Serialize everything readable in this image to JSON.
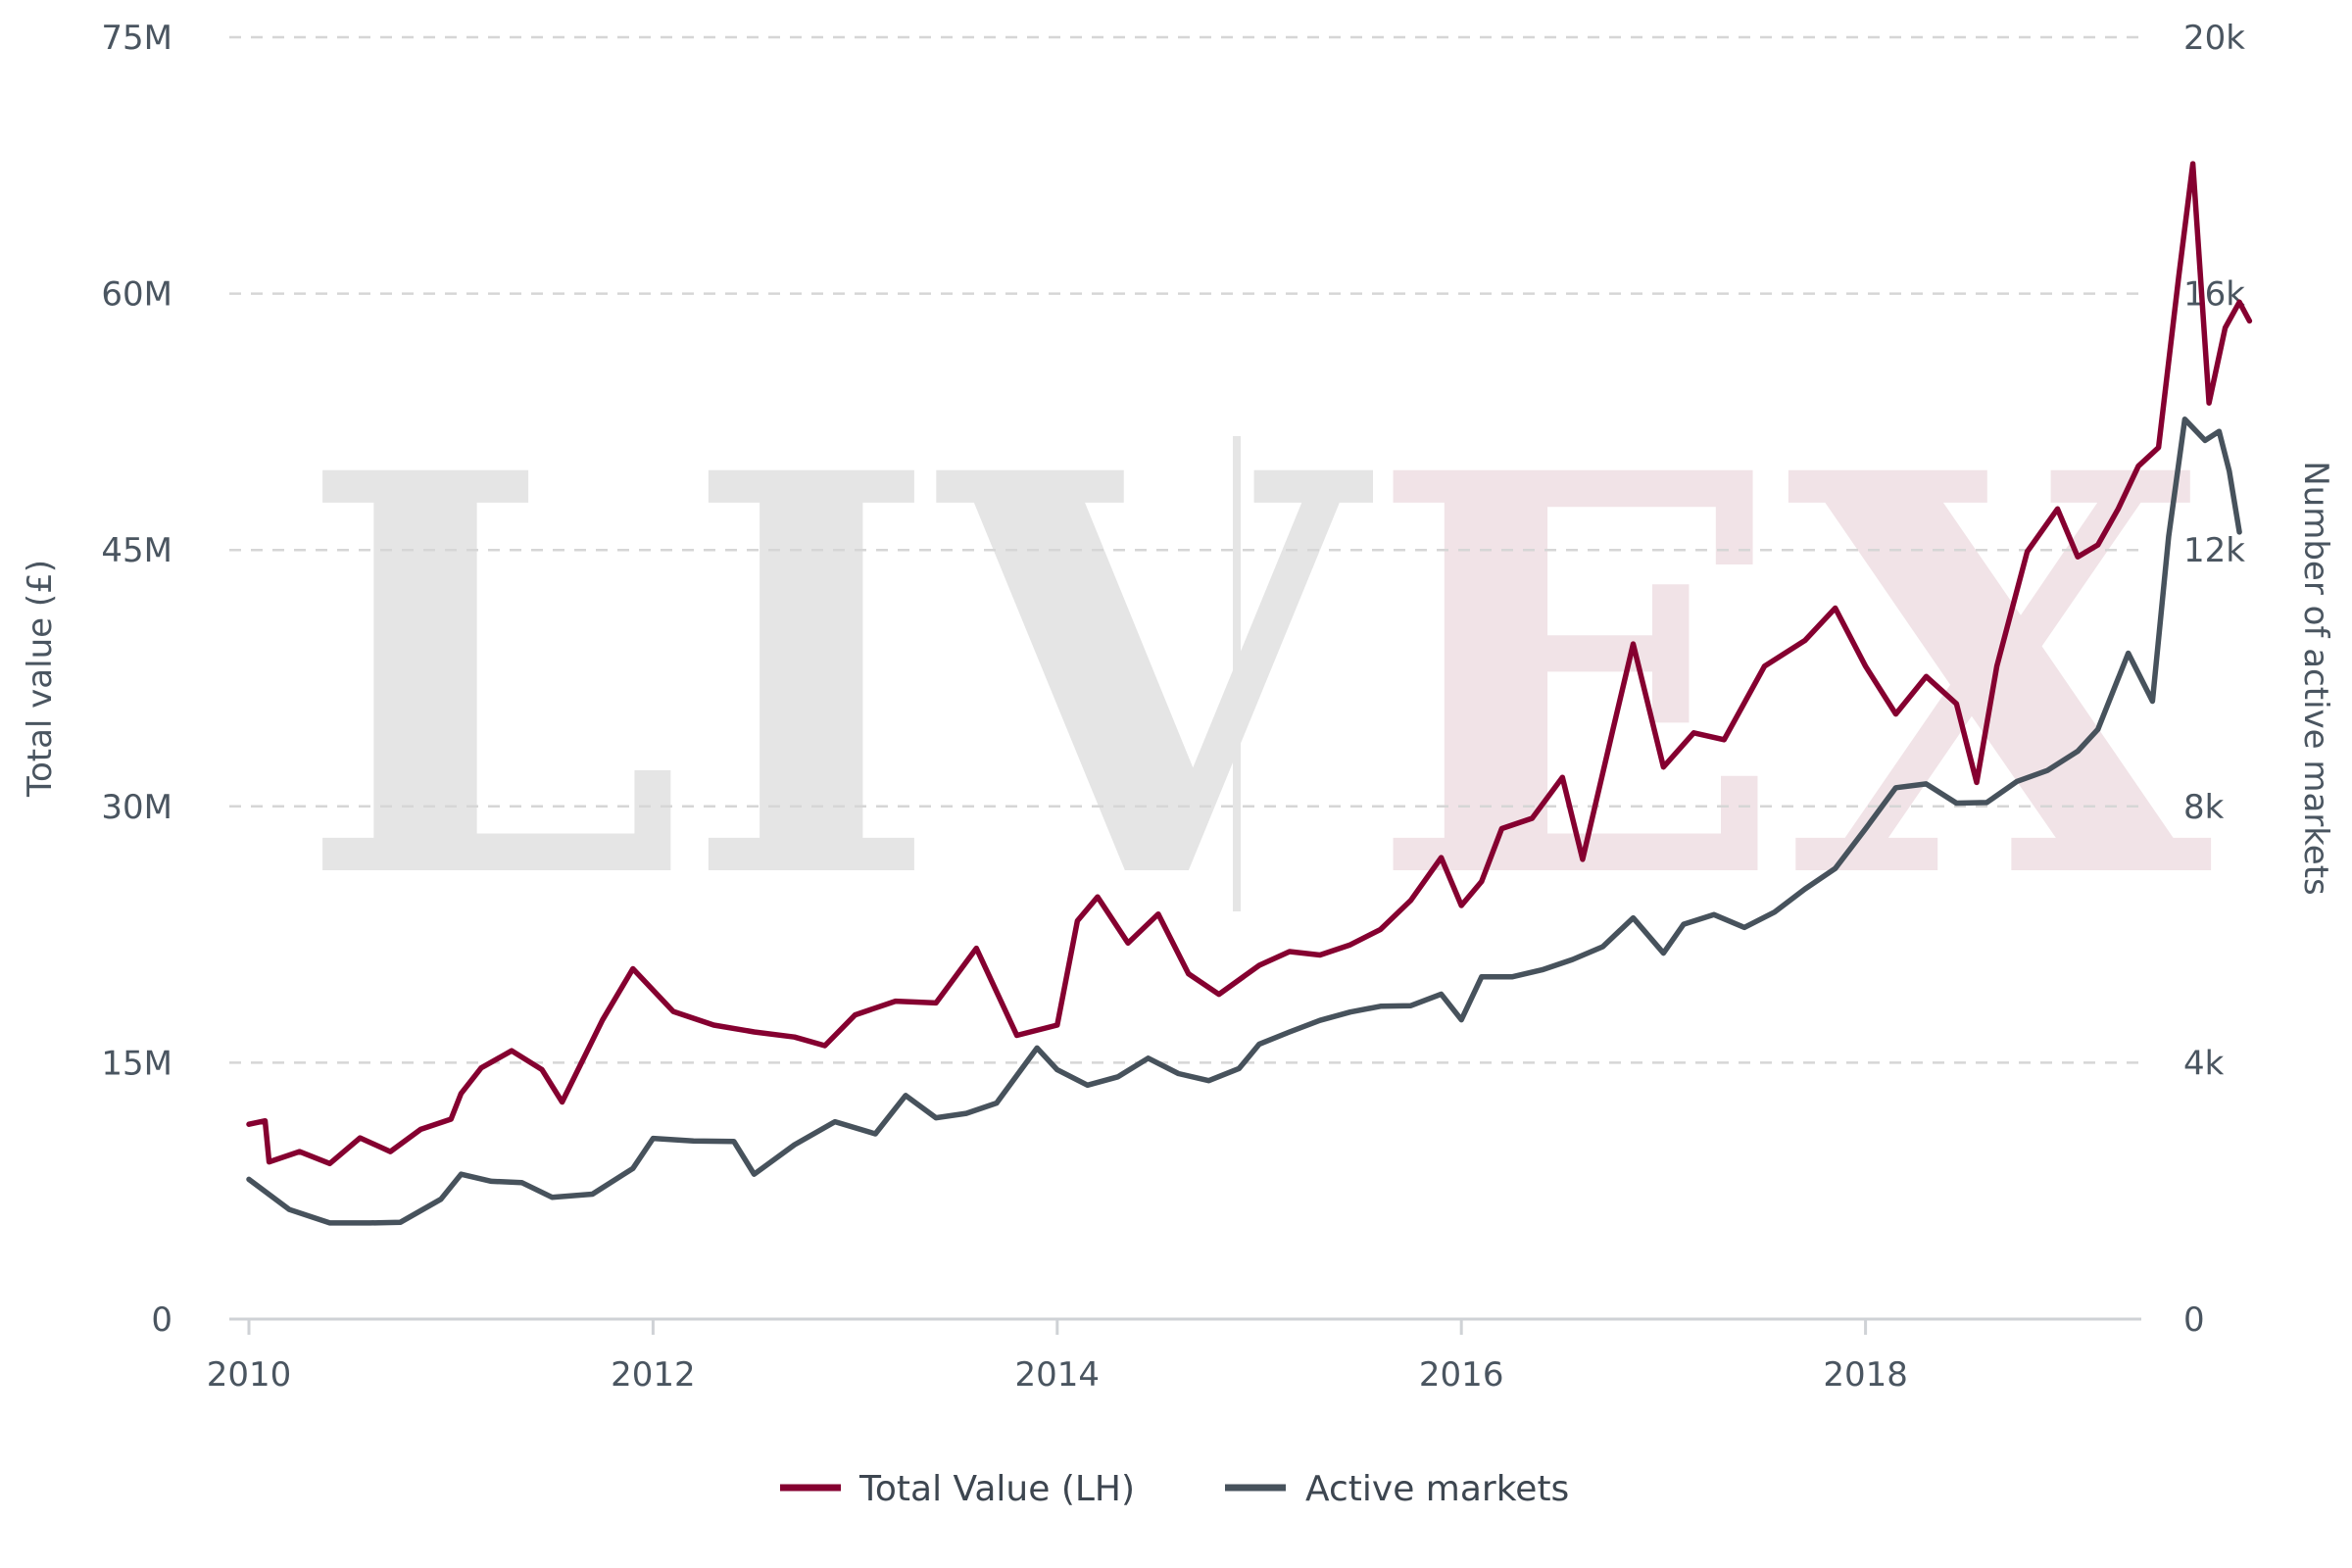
{
  "watermark": {
    "left_text": "LIV",
    "right_text": "EX",
    "left_color": "#e5e5e5",
    "right_color": "#f1e3e7"
  },
  "chart_data": {
    "type": "line",
    "x_axis": {
      "range": [
        2010,
        2020
      ],
      "ticks": [
        2010,
        2012,
        2014,
        2016,
        2018
      ],
      "tick_labels": [
        "2010",
        "2012",
        "2014",
        "2016",
        "2018"
      ]
    },
    "y_left": {
      "label": "Total value (£)",
      "range": [
        0,
        75000000
      ],
      "ticks": [
        0,
        15000000,
        30000000,
        45000000,
        60000000,
        75000000
      ],
      "tick_labels": [
        "0",
        "15M",
        "30M",
        "45M",
        "60M",
        "75M"
      ]
    },
    "y_right": {
      "label": "Number of active markets",
      "range": [
        0,
        20000
      ],
      "ticks": [
        0,
        4000,
        8000,
        12000,
        16000,
        20000
      ],
      "tick_labels": [
        "0",
        "4k",
        "8k",
        "12k",
        "16k",
        "20k"
      ]
    },
    "grid": "horizontal dashed",
    "legend_position": "bottom-center",
    "series": [
      {
        "name": "Total Value (LH)",
        "axis": "left",
        "color": "#850030",
        "points": [
          [
            2010.0,
            11400000
          ],
          [
            2010.08,
            11600000
          ],
          [
            2010.1,
            9200000
          ],
          [
            2010.25,
            9800000
          ],
          [
            2010.4,
            9100000
          ],
          [
            2010.55,
            10600000
          ],
          [
            2010.7,
            9800000
          ],
          [
            2010.85,
            11100000
          ],
          [
            2011.0,
            11700000
          ],
          [
            2011.05,
            13200000
          ],
          [
            2011.15,
            14700000
          ],
          [
            2011.3,
            15700000
          ],
          [
            2011.45,
            14600000
          ],
          [
            2011.55,
            12700000
          ],
          [
            2011.75,
            17500000
          ],
          [
            2011.9,
            20500000
          ],
          [
            2012.1,
            18000000
          ],
          [
            2012.3,
            17200000
          ],
          [
            2012.5,
            16800000
          ],
          [
            2012.7,
            16500000
          ],
          [
            2012.85,
            16000000
          ],
          [
            2013.0,
            17800000
          ],
          [
            2013.2,
            18600000
          ],
          [
            2013.4,
            18500000
          ],
          [
            2013.6,
            21700000
          ],
          [
            2013.8,
            16600000
          ],
          [
            2014.0,
            17200000
          ],
          [
            2014.1,
            23300000
          ],
          [
            2014.2,
            24700000
          ],
          [
            2014.35,
            22000000
          ],
          [
            2014.5,
            23700000
          ],
          [
            2014.65,
            20200000
          ],
          [
            2014.8,
            19000000
          ],
          [
            2015.0,
            20700000
          ],
          [
            2015.15,
            21500000
          ],
          [
            2015.3,
            21300000
          ],
          [
            2015.45,
            21900000
          ],
          [
            2015.6,
            22800000
          ],
          [
            2015.75,
            24500000
          ],
          [
            2015.9,
            27000000
          ],
          [
            2016.0,
            24200000
          ],
          [
            2016.1,
            25600000
          ],
          [
            2016.2,
            28700000
          ],
          [
            2016.35,
            29300000
          ],
          [
            2016.5,
            31700000
          ],
          [
            2016.6,
            26900000
          ],
          [
            2016.75,
            34500000
          ],
          [
            2016.85,
            39500000
          ],
          [
            2017.0,
            32300000
          ],
          [
            2017.15,
            34300000
          ],
          [
            2017.3,
            33900000
          ],
          [
            2017.5,
            38200000
          ],
          [
            2017.7,
            39700000
          ],
          [
            2017.85,
            41600000
          ],
          [
            2018.0,
            38200000
          ],
          [
            2018.15,
            35400000
          ],
          [
            2018.3,
            37600000
          ],
          [
            2018.45,
            36000000
          ],
          [
            2018.55,
            31400000
          ],
          [
            2018.65,
            38200000
          ],
          [
            2018.8,
            44900000
          ],
          [
            2018.95,
            47400000
          ],
          [
            2019.05,
            44600000
          ],
          [
            2019.15,
            45300000
          ],
          [
            2019.25,
            47400000
          ],
          [
            2019.35,
            49900000
          ],
          [
            2019.45,
            51000000
          ],
          [
            2019.55,
            61000000
          ],
          [
            2019.62,
            67600000
          ],
          [
            2019.7,
            53600000
          ],
          [
            2019.78,
            58000000
          ],
          [
            2019.85,
            59500000
          ],
          [
            2019.9,
            58400000
          ]
        ]
      },
      {
        "name": "Active markets",
        "axis": "right",
        "color": "#47525c",
        "points": [
          [
            2010.0,
            2180
          ],
          [
            2010.2,
            1710
          ],
          [
            2010.4,
            1500
          ],
          [
            2010.6,
            1500
          ],
          [
            2010.75,
            1510
          ],
          [
            2010.95,
            1870
          ],
          [
            2011.05,
            2260
          ],
          [
            2011.2,
            2150
          ],
          [
            2011.35,
            2130
          ],
          [
            2011.5,
            1900
          ],
          [
            2011.7,
            1950
          ],
          [
            2011.9,
            2350
          ],
          [
            2012.0,
            2820
          ],
          [
            2012.2,
            2780
          ],
          [
            2012.4,
            2770
          ],
          [
            2012.5,
            2260
          ],
          [
            2012.7,
            2720
          ],
          [
            2012.9,
            3080
          ],
          [
            2013.1,
            2890
          ],
          [
            2013.25,
            3490
          ],
          [
            2013.4,
            3140
          ],
          [
            2013.55,
            3210
          ],
          [
            2013.7,
            3370
          ],
          [
            2013.9,
            4230
          ],
          [
            2014.0,
            3890
          ],
          [
            2014.15,
            3650
          ],
          [
            2014.3,
            3780
          ],
          [
            2014.45,
            4070
          ],
          [
            2014.6,
            3830
          ],
          [
            2014.75,
            3720
          ],
          [
            2014.9,
            3910
          ],
          [
            2015.0,
            4290
          ],
          [
            2015.15,
            4480
          ],
          [
            2015.3,
            4660
          ],
          [
            2015.45,
            4790
          ],
          [
            2015.6,
            4880
          ],
          [
            2015.75,
            4890
          ],
          [
            2015.9,
            5070
          ],
          [
            2016.0,
            4670
          ],
          [
            2016.1,
            5340
          ],
          [
            2016.25,
            5340
          ],
          [
            2016.4,
            5450
          ],
          [
            2016.55,
            5610
          ],
          [
            2016.7,
            5810
          ],
          [
            2016.85,
            6260
          ],
          [
            2017.0,
            5710
          ],
          [
            2017.1,
            6160
          ],
          [
            2017.25,
            6310
          ],
          [
            2017.4,
            6110
          ],
          [
            2017.55,
            6350
          ],
          [
            2017.7,
            6710
          ],
          [
            2017.85,
            7030
          ],
          [
            2018.0,
            7650
          ],
          [
            2018.15,
            8290
          ],
          [
            2018.3,
            8350
          ],
          [
            2018.45,
            8050
          ],
          [
            2018.6,
            8060
          ],
          [
            2018.75,
            8390
          ],
          [
            2018.9,
            8560
          ],
          [
            2019.05,
            8860
          ],
          [
            2019.15,
            9200
          ],
          [
            2019.3,
            10390
          ],
          [
            2019.42,
            9640
          ],
          [
            2019.5,
            12210
          ],
          [
            2019.58,
            14040
          ],
          [
            2019.68,
            13710
          ],
          [
            2019.75,
            13850
          ],
          [
            2019.8,
            13230
          ],
          [
            2019.85,
            12280
          ]
        ]
      }
    ]
  }
}
